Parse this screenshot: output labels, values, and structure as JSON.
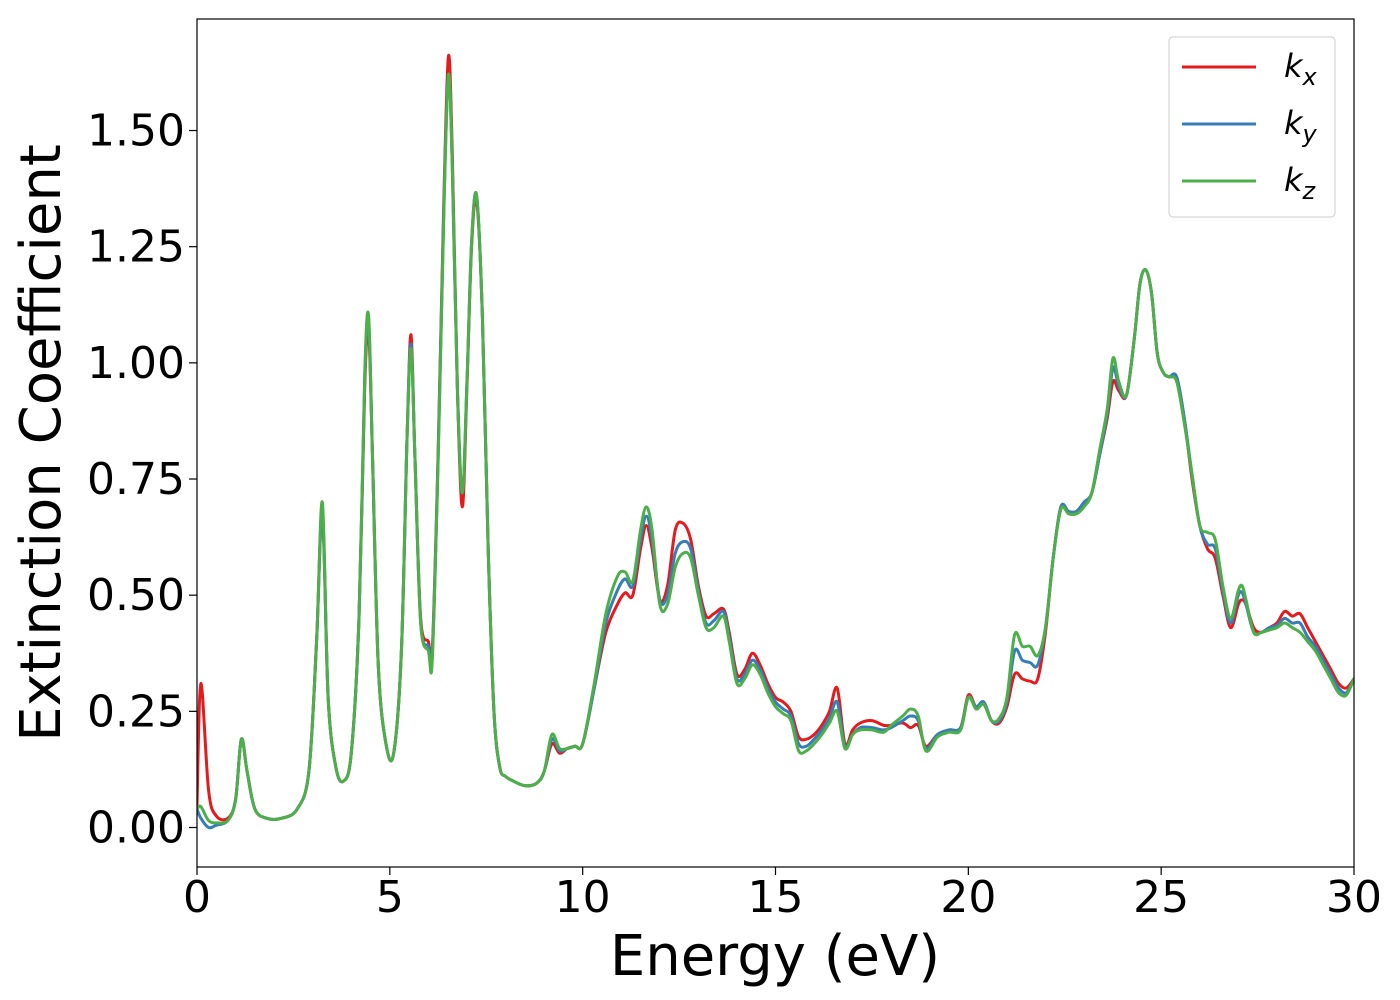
{
  "chart_data": {
    "type": "line",
    "xlabel": "Energy (eV)",
    "ylabel": "Extinction Coefficient",
    "xlim": [
      0,
      30
    ],
    "ylim": [
      -0.085,
      1.74
    ],
    "xticks": [
      0,
      5,
      10,
      15,
      20,
      25,
      30
    ],
    "xtick_labels": [
      "0",
      "5",
      "10",
      "15",
      "20",
      "25",
      "30"
    ],
    "yticks": [
      0,
      0.25,
      0.5,
      0.75,
      1.0,
      1.25,
      1.5
    ],
    "ytick_labels": [
      "0.00",
      "0.25",
      "0.50",
      "0.75",
      "1.00",
      "1.25",
      "1.50"
    ],
    "grid": false,
    "legend_position": "top-right",
    "series": [
      {
        "name": "k",
        "subscript": "x",
        "color": "#e41a1c",
        "x": [
          0,
          0.1,
          0.3,
          0.5,
          0.8,
          1.0,
          1.15,
          1.3,
          1.5,
          1.8,
          2.2,
          2.6,
          2.9,
          3.1,
          3.25,
          3.4,
          3.6,
          3.8,
          4.0,
          4.2,
          4.35,
          4.45,
          4.55,
          4.7,
          4.9,
          5.1,
          5.3,
          5.45,
          5.55,
          5.65,
          5.8,
          6.0,
          6.1,
          6.25,
          6.4,
          6.52,
          6.62,
          6.75,
          6.88,
          7.0,
          7.12,
          7.25,
          7.4,
          7.55,
          7.7,
          7.85,
          8.0,
          8.2,
          8.5,
          8.8,
          9.0,
          9.2,
          9.4,
          9.6,
          9.8,
          10.0,
          10.3,
          10.6,
          10.9,
          11.1,
          11.3,
          11.5,
          11.65,
          11.8,
          12.0,
          12.2,
          12.4,
          12.6,
          12.8,
          13.0,
          13.2,
          13.4,
          13.65,
          13.8,
          14.0,
          14.2,
          14.4,
          14.6,
          14.8,
          15.0,
          15.2,
          15.4,
          15.6,
          15.8,
          16.0,
          16.2,
          16.4,
          16.6,
          16.8,
          17.0,
          17.2,
          17.5,
          17.8,
          18.0,
          18.3,
          18.5,
          18.7,
          18.9,
          19.2,
          19.5,
          19.8,
          20.0,
          20.2,
          20.4,
          20.6,
          20.8,
          21.0,
          21.2,
          21.4,
          21.6,
          21.8,
          22.0,
          22.2,
          22.4,
          22.6,
          22.8,
          23.0,
          23.2,
          23.4,
          23.6,
          23.75,
          23.9,
          24.1,
          24.3,
          24.45,
          24.6,
          24.75,
          24.9,
          25.05,
          25.2,
          25.4,
          25.6,
          25.8,
          26.0,
          26.2,
          26.4,
          26.6,
          26.8,
          27.0,
          27.1,
          27.2,
          27.4,
          27.6,
          27.8,
          28.0,
          28.2,
          28.4,
          28.6,
          28.8,
          29.0,
          29.2,
          29.4,
          29.6,
          29.8,
          30.0
        ],
        "y": [
          0.05,
          0.31,
          0.08,
          0.025,
          0.02,
          0.06,
          0.19,
          0.12,
          0.04,
          0.02,
          0.02,
          0.04,
          0.12,
          0.4,
          0.68,
          0.28,
          0.13,
          0.1,
          0.16,
          0.45,
          0.95,
          1.07,
          0.8,
          0.35,
          0.18,
          0.16,
          0.38,
          0.85,
          1.06,
          0.8,
          0.45,
          0.4,
          0.38,
          0.8,
          1.35,
          1.66,
          1.45,
          0.95,
          0.69,
          0.95,
          1.25,
          1.35,
          1.1,
          0.6,
          0.25,
          0.13,
          0.11,
          0.1,
          0.09,
          0.095,
          0.12,
          0.18,
          0.16,
          0.17,
          0.175,
          0.18,
          0.3,
          0.42,
          0.48,
          0.505,
          0.5,
          0.6,
          0.65,
          0.6,
          0.49,
          0.52,
          0.64,
          0.655,
          0.62,
          0.52,
          0.455,
          0.46,
          0.47,
          0.42,
          0.33,
          0.34,
          0.375,
          0.35,
          0.31,
          0.28,
          0.27,
          0.25,
          0.195,
          0.19,
          0.2,
          0.22,
          0.25,
          0.3,
          0.18,
          0.21,
          0.225,
          0.23,
          0.22,
          0.22,
          0.225,
          0.215,
          0.22,
          0.175,
          0.2,
          0.21,
          0.215,
          0.285,
          0.26,
          0.27,
          0.23,
          0.225,
          0.26,
          0.33,
          0.32,
          0.315,
          0.32,
          0.42,
          0.58,
          0.69,
          0.68,
          0.68,
          0.7,
          0.72,
          0.8,
          0.88,
          0.96,
          0.94,
          0.93,
          1.05,
          1.17,
          1.2,
          1.15,
          1.02,
          0.98,
          0.97,
          0.97,
          0.88,
          0.75,
          0.65,
          0.6,
          0.58,
          0.5,
          0.43,
          0.48,
          0.49,
          0.48,
          0.43,
          0.42,
          0.43,
          0.44,
          0.465,
          0.455,
          0.46,
          0.43,
          0.4,
          0.37,
          0.34,
          0.31,
          0.3,
          0.32
        ]
      },
      {
        "name": "k",
        "subscript": "y",
        "color": "#377eb8",
        "x": [
          0,
          0.1,
          0.3,
          0.5,
          0.8,
          1.0,
          1.15,
          1.3,
          1.5,
          1.8,
          2.2,
          2.6,
          2.9,
          3.1,
          3.25,
          3.4,
          3.6,
          3.8,
          4.0,
          4.2,
          4.35,
          4.45,
          4.55,
          4.7,
          4.9,
          5.1,
          5.3,
          5.45,
          5.55,
          5.65,
          5.8,
          6.0,
          6.1,
          6.25,
          6.4,
          6.52,
          6.62,
          6.75,
          6.88,
          7.0,
          7.12,
          7.25,
          7.4,
          7.55,
          7.7,
          7.85,
          8.0,
          8.2,
          8.5,
          8.8,
          9.0,
          9.2,
          9.4,
          9.6,
          9.8,
          10.0,
          10.3,
          10.6,
          10.9,
          11.1,
          11.3,
          11.5,
          11.65,
          11.8,
          12.0,
          12.2,
          12.4,
          12.6,
          12.8,
          13.0,
          13.2,
          13.4,
          13.65,
          13.8,
          14.0,
          14.2,
          14.4,
          14.6,
          14.8,
          15.0,
          15.2,
          15.4,
          15.6,
          15.8,
          16.0,
          16.2,
          16.4,
          16.6,
          16.8,
          17.0,
          17.2,
          17.5,
          17.8,
          18.0,
          18.3,
          18.5,
          18.7,
          18.9,
          19.2,
          19.5,
          19.8,
          20.0,
          20.2,
          20.4,
          20.6,
          20.8,
          21.0,
          21.2,
          21.4,
          21.6,
          21.8,
          22.0,
          22.2,
          22.4,
          22.6,
          22.8,
          23.0,
          23.2,
          23.4,
          23.6,
          23.75,
          23.9,
          24.1,
          24.3,
          24.45,
          24.6,
          24.75,
          24.9,
          25.05,
          25.2,
          25.4,
          25.6,
          25.8,
          26.0,
          26.2,
          26.4,
          26.6,
          26.8,
          27.0,
          27.1,
          27.2,
          27.4,
          27.6,
          27.8,
          28.0,
          28.2,
          28.4,
          28.6,
          28.8,
          29.0,
          29.2,
          29.4,
          29.6,
          29.8,
          30.0
        ],
        "y": [
          0.04,
          0.02,
          0.0,
          0.005,
          0.015,
          0.06,
          0.19,
          0.12,
          0.04,
          0.02,
          0.02,
          0.04,
          0.12,
          0.4,
          0.68,
          0.28,
          0.13,
          0.1,
          0.16,
          0.45,
          0.97,
          1.09,
          0.8,
          0.35,
          0.18,
          0.16,
          0.38,
          0.85,
          1.04,
          0.8,
          0.44,
          0.39,
          0.37,
          0.79,
          1.33,
          1.62,
          1.42,
          0.95,
          0.72,
          0.96,
          1.26,
          1.36,
          1.1,
          0.6,
          0.25,
          0.13,
          0.11,
          0.1,
          0.09,
          0.095,
          0.12,
          0.19,
          0.165,
          0.17,
          0.175,
          0.18,
          0.3,
          0.44,
          0.51,
          0.535,
          0.52,
          0.62,
          0.67,
          0.62,
          0.49,
          0.5,
          0.59,
          0.615,
          0.6,
          0.51,
          0.44,
          0.445,
          0.465,
          0.41,
          0.32,
          0.33,
          0.36,
          0.34,
          0.3,
          0.27,
          0.255,
          0.24,
          0.18,
          0.175,
          0.19,
          0.21,
          0.235,
          0.27,
          0.175,
          0.2,
          0.215,
          0.215,
          0.21,
          0.215,
          0.23,
          0.24,
          0.23,
          0.17,
          0.2,
          0.21,
          0.215,
          0.28,
          0.26,
          0.27,
          0.23,
          0.23,
          0.27,
          0.38,
          0.36,
          0.355,
          0.35,
          0.43,
          0.58,
          0.69,
          0.68,
          0.68,
          0.7,
          0.72,
          0.8,
          0.89,
          0.99,
          0.95,
          0.93,
          1.05,
          1.17,
          1.2,
          1.15,
          1.02,
          0.98,
          0.97,
          0.97,
          0.88,
          0.76,
          0.65,
          0.61,
          0.6,
          0.51,
          0.44,
          0.5,
          0.505,
          0.48,
          0.42,
          0.42,
          0.43,
          0.435,
          0.45,
          0.44,
          0.44,
          0.41,
          0.39,
          0.36,
          0.33,
          0.3,
          0.29,
          0.32
        ]
      },
      {
        "name": "k",
        "subscript": "z",
        "color": "#4daf4a",
        "x": [
          0,
          0.1,
          0.3,
          0.5,
          0.8,
          1.0,
          1.15,
          1.3,
          1.5,
          1.8,
          2.2,
          2.6,
          2.9,
          3.1,
          3.25,
          3.4,
          3.6,
          3.8,
          4.0,
          4.2,
          4.35,
          4.45,
          4.55,
          4.7,
          4.9,
          5.1,
          5.3,
          5.45,
          5.55,
          5.65,
          5.8,
          6.0,
          6.1,
          6.25,
          6.4,
          6.52,
          6.62,
          6.75,
          6.88,
          7.0,
          7.12,
          7.25,
          7.4,
          7.55,
          7.7,
          7.85,
          8.0,
          8.2,
          8.5,
          8.8,
          9.0,
          9.2,
          9.4,
          9.6,
          9.8,
          10.0,
          10.3,
          10.6,
          10.9,
          11.1,
          11.3,
          11.5,
          11.65,
          11.8,
          12.0,
          12.2,
          12.4,
          12.6,
          12.8,
          13.0,
          13.2,
          13.4,
          13.65,
          13.8,
          14.0,
          14.2,
          14.4,
          14.6,
          14.8,
          15.0,
          15.2,
          15.4,
          15.6,
          15.8,
          16.0,
          16.2,
          16.4,
          16.6,
          16.8,
          17.0,
          17.2,
          17.5,
          17.8,
          18.0,
          18.3,
          18.5,
          18.7,
          18.9,
          19.2,
          19.5,
          19.8,
          20.0,
          20.2,
          20.4,
          20.6,
          20.8,
          21.0,
          21.2,
          21.4,
          21.6,
          21.8,
          22.0,
          22.2,
          22.4,
          22.6,
          22.8,
          23.0,
          23.2,
          23.4,
          23.6,
          23.75,
          23.9,
          24.1,
          24.3,
          24.45,
          24.6,
          24.75,
          24.9,
          25.05,
          25.2,
          25.4,
          25.6,
          25.8,
          26.0,
          26.2,
          26.4,
          26.6,
          26.8,
          27.0,
          27.1,
          27.2,
          27.4,
          27.6,
          27.8,
          28.0,
          28.2,
          28.4,
          28.6,
          28.8,
          29.0,
          29.2,
          29.4,
          29.6,
          29.8,
          30.0
        ],
        "y": [
          0.04,
          0.045,
          0.015,
          0.01,
          0.015,
          0.06,
          0.19,
          0.12,
          0.04,
          0.02,
          0.02,
          0.04,
          0.12,
          0.4,
          0.7,
          0.28,
          0.13,
          0.1,
          0.16,
          0.45,
          0.98,
          1.1,
          0.8,
          0.35,
          0.18,
          0.16,
          0.38,
          0.85,
          1.03,
          0.8,
          0.44,
          0.38,
          0.36,
          0.78,
          1.32,
          1.62,
          1.42,
          0.95,
          0.72,
          0.96,
          1.26,
          1.36,
          1.1,
          0.6,
          0.25,
          0.13,
          0.11,
          0.1,
          0.09,
          0.095,
          0.12,
          0.2,
          0.17,
          0.17,
          0.175,
          0.18,
          0.31,
          0.46,
          0.54,
          0.55,
          0.53,
          0.64,
          0.69,
          0.64,
          0.48,
          0.48,
          0.56,
          0.59,
          0.58,
          0.5,
          0.43,
          0.43,
          0.455,
          0.4,
          0.31,
          0.32,
          0.35,
          0.33,
          0.29,
          0.26,
          0.245,
          0.23,
          0.165,
          0.165,
          0.18,
          0.2,
          0.225,
          0.25,
          0.17,
          0.2,
          0.21,
          0.21,
          0.205,
          0.22,
          0.24,
          0.255,
          0.24,
          0.165,
          0.195,
          0.205,
          0.21,
          0.28,
          0.255,
          0.265,
          0.23,
          0.235,
          0.28,
          0.415,
          0.39,
          0.39,
          0.37,
          0.43,
          0.58,
          0.685,
          0.675,
          0.675,
          0.69,
          0.72,
          0.81,
          0.9,
          1.01,
          0.96,
          0.93,
          1.05,
          1.17,
          1.2,
          1.15,
          1.02,
          0.98,
          0.97,
          0.96,
          0.87,
          0.76,
          0.65,
          0.635,
          0.62,
          0.52,
          0.45,
          0.51,
          0.52,
          0.49,
          0.42,
          0.42,
          0.425,
          0.43,
          0.44,
          0.43,
          0.42,
          0.4,
          0.38,
          0.35,
          0.32,
          0.29,
          0.285,
          0.32
        ]
      }
    ]
  }
}
